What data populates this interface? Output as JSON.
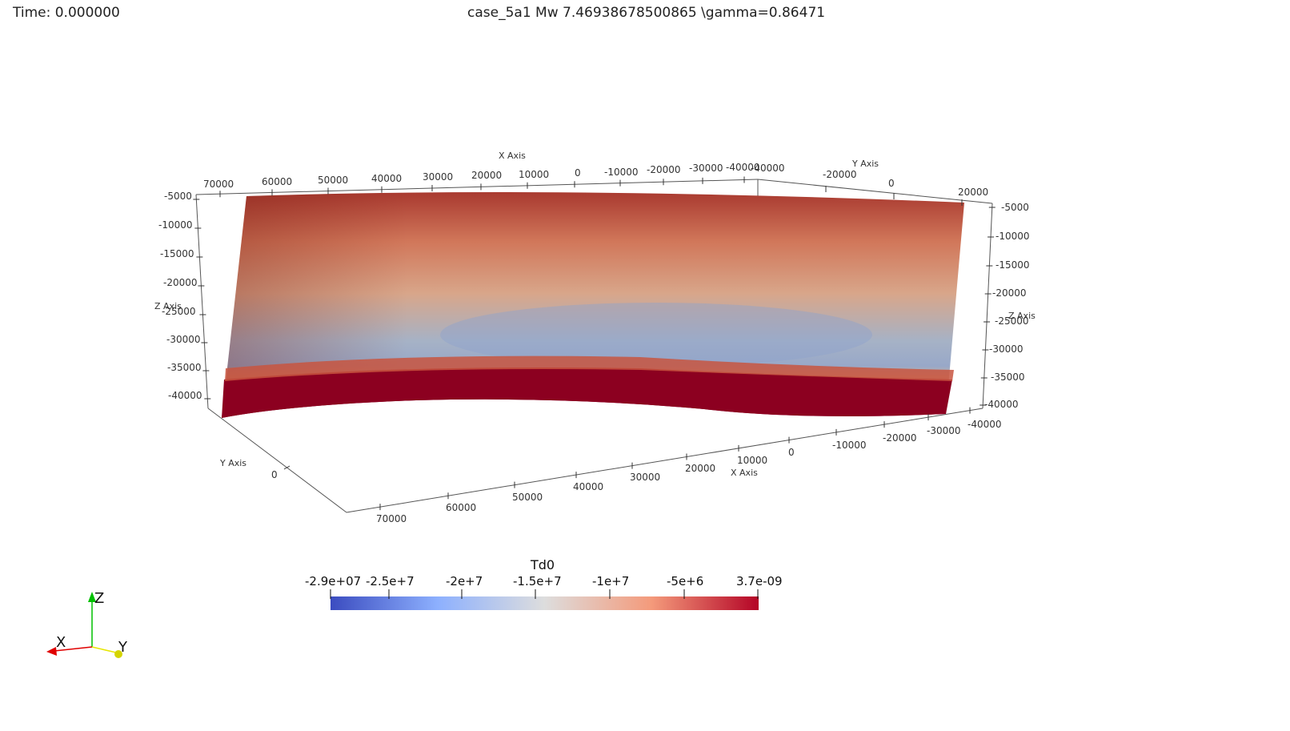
{
  "overlay": {
    "time": "Time: 0.000000",
    "title": "case_5a1 Mw  7.46938678500865   \\gamma=0.86471"
  },
  "axes": {
    "x_title": "X Axis",
    "y_title": "Y Axis",
    "z_title": "Z Axis",
    "top_x_ticks": [
      "70000",
      "60000",
      "50000",
      "40000",
      "30000",
      "20000",
      "10000",
      "0",
      "-10000",
      "-20000",
      "-30000",
      "-40000",
      "-40000"
    ],
    "top_y_ticks": [
      "-20000",
      "0",
      "20000"
    ],
    "left_z_ticks": [
      "-5000",
      "-10000",
      "-15000",
      "-20000",
      "-25000",
      "-30000",
      "-35000",
      "-40000"
    ],
    "right_z_ticks": [
      "-5000",
      "-10000",
      "-15000",
      "-20000",
      "-25000",
      "-30000",
      "-35000",
      "-40000"
    ],
    "bottom_x_ticks": [
      "70000",
      "60000",
      "50000",
      "40000",
      "30000",
      "20000",
      "10000",
      "0",
      "-10000",
      "-20000",
      "-30000",
      "-40000"
    ],
    "left_y_ticks": [
      "0"
    ]
  },
  "colorbar": {
    "title": "Td0",
    "ticks": [
      "-2.9e+07",
      "-2.5e+7",
      "-2e+7",
      "-1.5e+7",
      "-1e+7",
      "-5e+6",
      "3.7e-09"
    ],
    "colormap": "Cool to Warm",
    "colors": [
      "#3b4cc0",
      "#8db0fe",
      "#dddddd",
      "#f49a7b",
      "#b40426"
    ]
  },
  "orientation_axes": {
    "x_label": "X",
    "y_label": "Y",
    "z_label": "Z",
    "x_color": "#e00000",
    "y_color": "#e6e600",
    "z_color": "#00c000"
  },
  "surface": {
    "scalar_name": "Td0",
    "colors": {
      "top_edge": "#a83830",
      "upper_mid": "#d68a6a",
      "low_region": "#97a7c6",
      "bottom_band": "#8c0020"
    }
  }
}
